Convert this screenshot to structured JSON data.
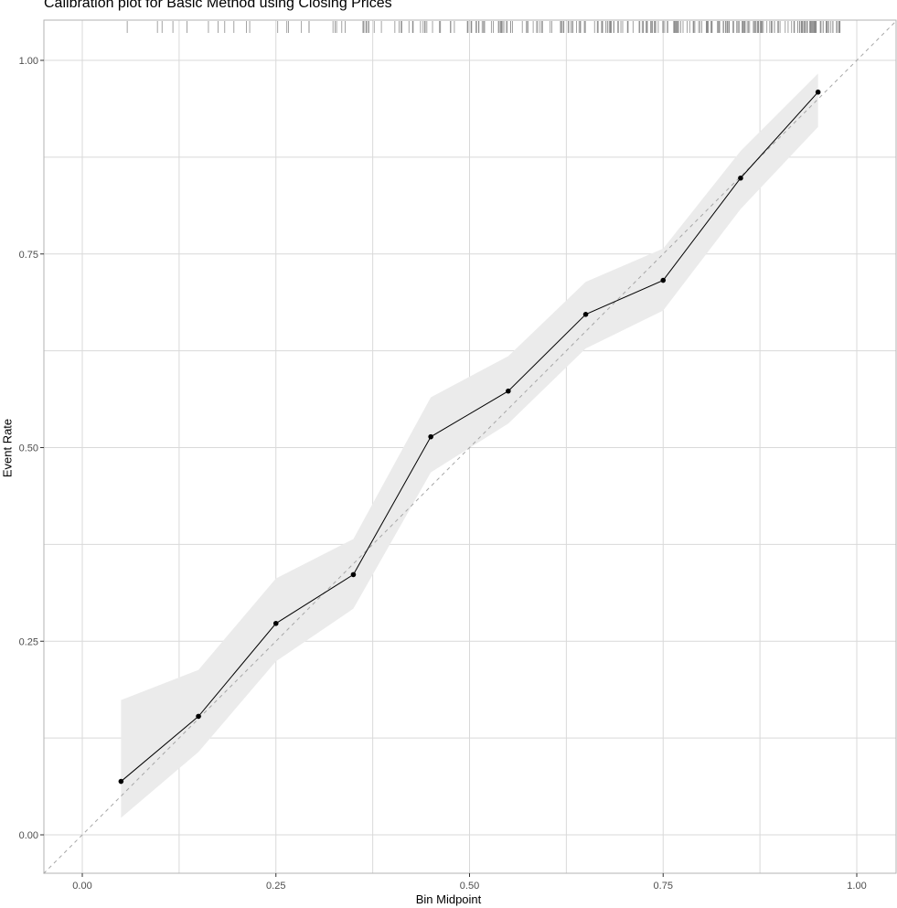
{
  "chart_data": {
    "type": "line",
    "title": "Calibration plot for Basic Method using Closing Prices",
    "xlabel": "Bin Midpoint",
    "ylabel": "Event Rate",
    "xlim": [
      -0.05,
      1.05
    ],
    "ylim": [
      -0.05,
      1.045
    ],
    "x_ticks": [
      "0.00",
      "0.25",
      "0.50",
      "0.75",
      "1.00"
    ],
    "y_ticks": [
      "0.00",
      "0.25",
      "0.50",
      "0.75",
      "1.00"
    ],
    "grid": true,
    "legend": "none",
    "reference_line": {
      "type": "diagonal",
      "style": "dashed",
      "slope": 1,
      "intercept": 0
    },
    "series": [
      {
        "x": [
          0.05,
          0.15,
          0.25,
          0.35,
          0.45,
          0.55,
          0.65,
          0.75,
          0.85,
          0.95
        ],
        "values": [
          0.069,
          0.153,
          0.273,
          0.336,
          0.514,
          0.573,
          0.672,
          0.716,
          0.848,
          0.959
        ],
        "ci_lower": [
          0.022,
          0.107,
          0.224,
          0.292,
          0.468,
          0.531,
          0.628,
          0.677,
          0.808,
          0.914
        ],
        "ci_upper": [
          0.174,
          0.213,
          0.331,
          0.382,
          0.565,
          0.618,
          0.714,
          0.757,
          0.883,
          0.983
        ]
      }
    ],
    "rug": {
      "position": "top",
      "x_range": [
        0.055,
        0.98
      ],
      "ticks": 300
    }
  },
  "colors": {
    "line": "#000000",
    "ribbon": "#ebebeb",
    "grid": "#d9d9d9",
    "reference": "#a6a6a6",
    "rug": "#8c8c8c",
    "panel_border": "#b3b3b3"
  }
}
